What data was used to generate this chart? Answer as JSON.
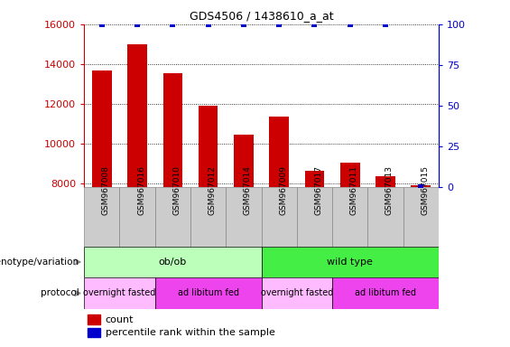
{
  "title": "GDS4506 / 1438610_a_at",
  "samples": [
    "GSM967008",
    "GSM967016",
    "GSM967010",
    "GSM967012",
    "GSM967014",
    "GSM967009",
    "GSM967017",
    "GSM967011",
    "GSM967013",
    "GSM967015"
  ],
  "counts": [
    13700,
    15000,
    13550,
    11900,
    10450,
    11350,
    8650,
    9050,
    8350,
    7900
  ],
  "percentile_ranks": [
    100,
    100,
    100,
    100,
    100,
    100,
    100,
    100,
    100,
    0
  ],
  "ylim_left": [
    7800,
    16000
  ],
  "ylim_right": [
    0,
    100
  ],
  "yticks_left": [
    8000,
    10000,
    12000,
    14000,
    16000
  ],
  "yticks_right": [
    0,
    25,
    50,
    75,
    100
  ],
  "bar_color": "#cc0000",
  "dot_color": "#0000cc",
  "genotype_groups": [
    {
      "label": "ob/ob",
      "start": 0,
      "end": 5,
      "color": "#bbffbb"
    },
    {
      "label": "wild type",
      "start": 5,
      "end": 10,
      "color": "#44ee44"
    }
  ],
  "protocol_groups": [
    {
      "label": "overnight fasted",
      "start": 0,
      "end": 2,
      "color": "#ffbbff"
    },
    {
      "label": "ad libitum fed",
      "start": 2,
      "end": 5,
      "color": "#ee44ee"
    },
    {
      "label": "overnight fasted",
      "start": 5,
      "end": 7,
      "color": "#ffbbff"
    },
    {
      "label": "ad libitum fed",
      "start": 7,
      "end": 10,
      "color": "#ee44ee"
    }
  ],
  "tick_label_color_left": "#cc0000",
  "tick_label_color_right": "#0000cc",
  "tick_bg_color": "#cccccc",
  "tick_separator_color": "#888888"
}
